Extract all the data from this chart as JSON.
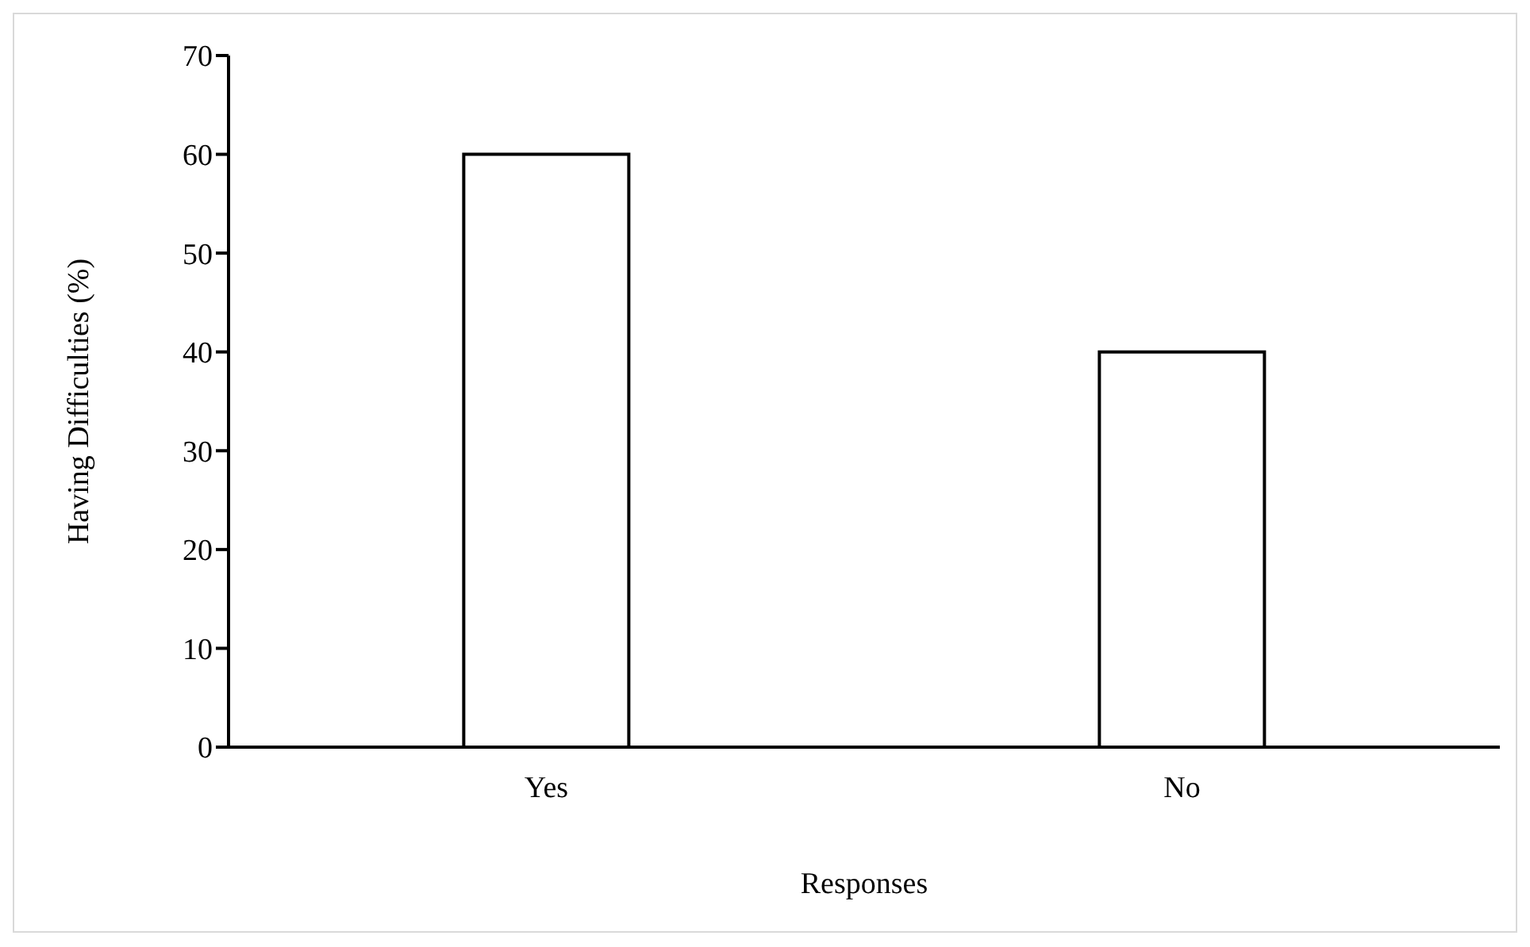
{
  "chart_data": {
    "type": "bar",
    "xlabel": "Responses",
    "ylabel": "Having Difficulties (%)",
    "categories": [
      "Yes",
      "No"
    ],
    "values": [
      60,
      40
    ],
    "color": "#ffffff",
    "ylim": [
      0,
      70
    ],
    "yticks": [
      0,
      10,
      20,
      30,
      40,
      50,
      60,
      70
    ],
    "grid": false,
    "legend": false
  }
}
